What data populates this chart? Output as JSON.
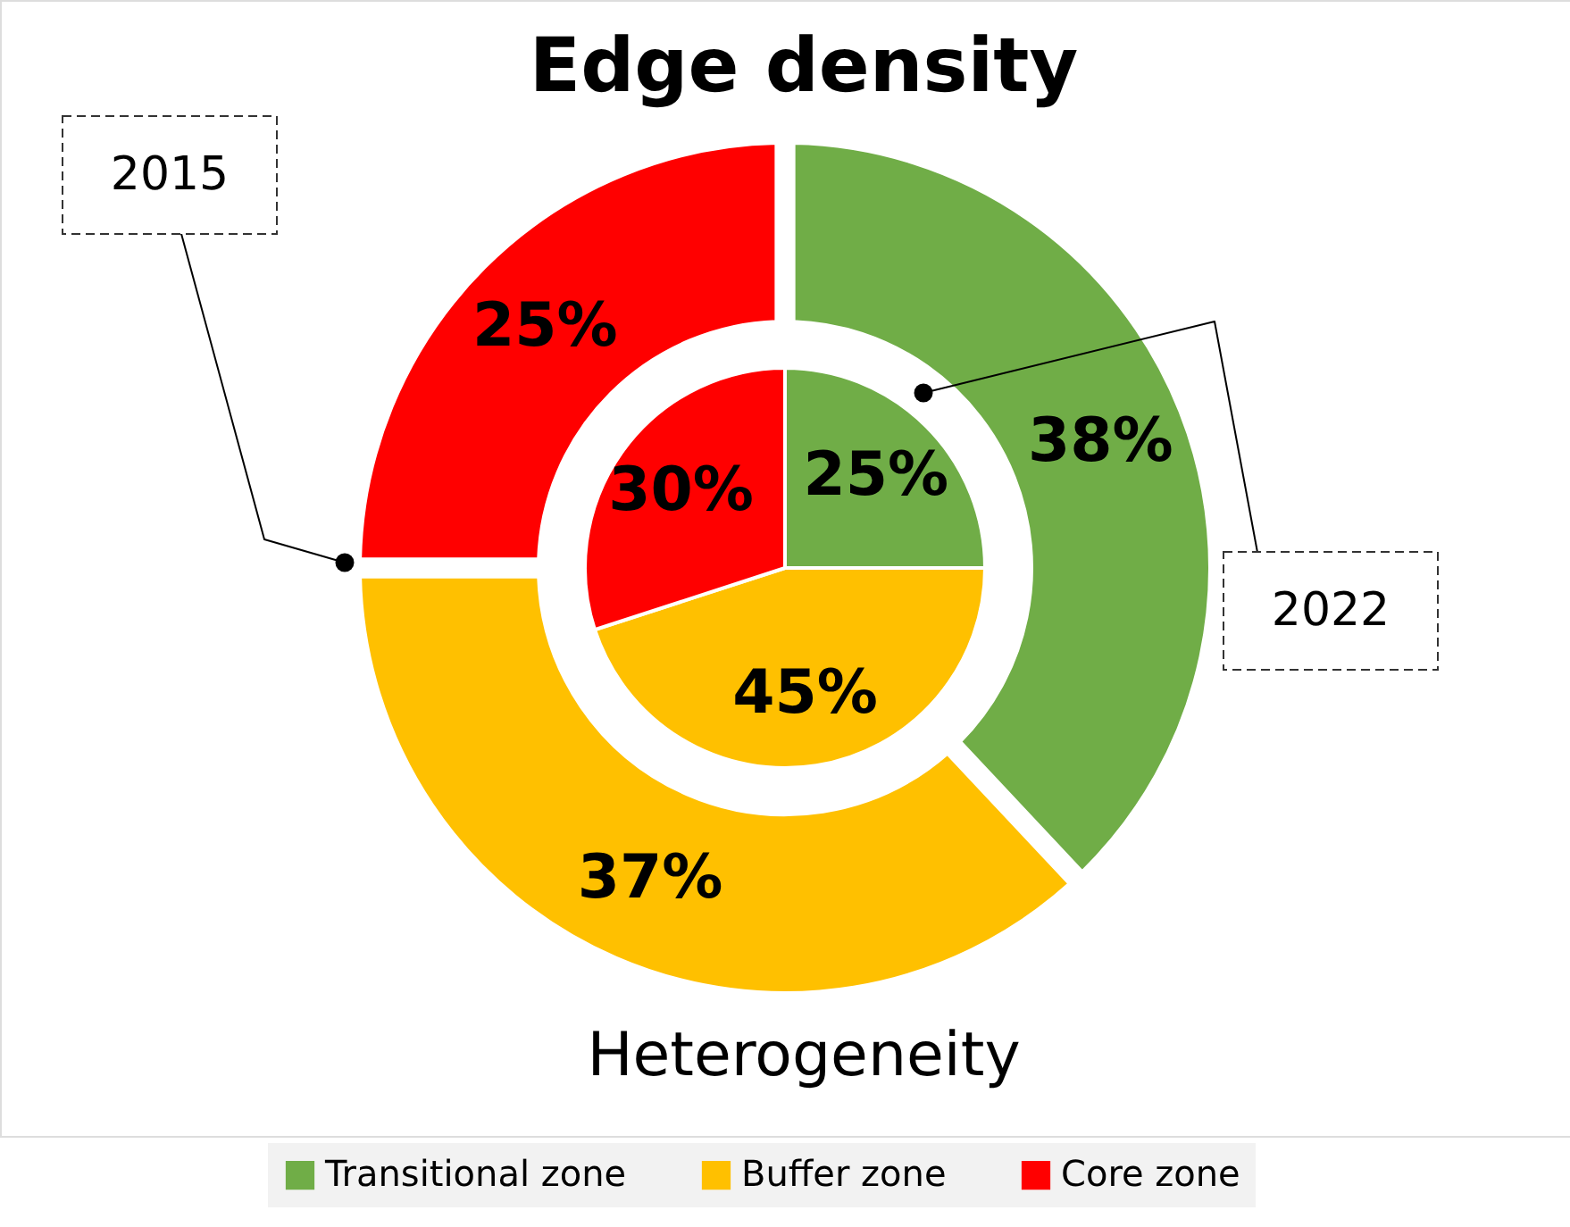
{
  "chart_data": {
    "type": "donut",
    "title": "Edge density",
    "categories": [
      "Transitional zone",
      "Buffer zone",
      "Core zone"
    ],
    "colors": [
      "#70ad47",
      "#ffc000",
      "#ff0000"
    ],
    "series": [
      {
        "name": "2022",
        "values": [
          25,
          45,
          30
        ],
        "value_labels": [
          "25%",
          "45%",
          "30%"
        ]
      },
      {
        "name": "2015",
        "values": [
          38,
          37,
          25
        ],
        "value_labels": [
          "38%",
          "37%",
          "25%"
        ]
      }
    ],
    "annotations": [
      "Heterogeneity"
    ],
    "legend": "bottom"
  }
}
